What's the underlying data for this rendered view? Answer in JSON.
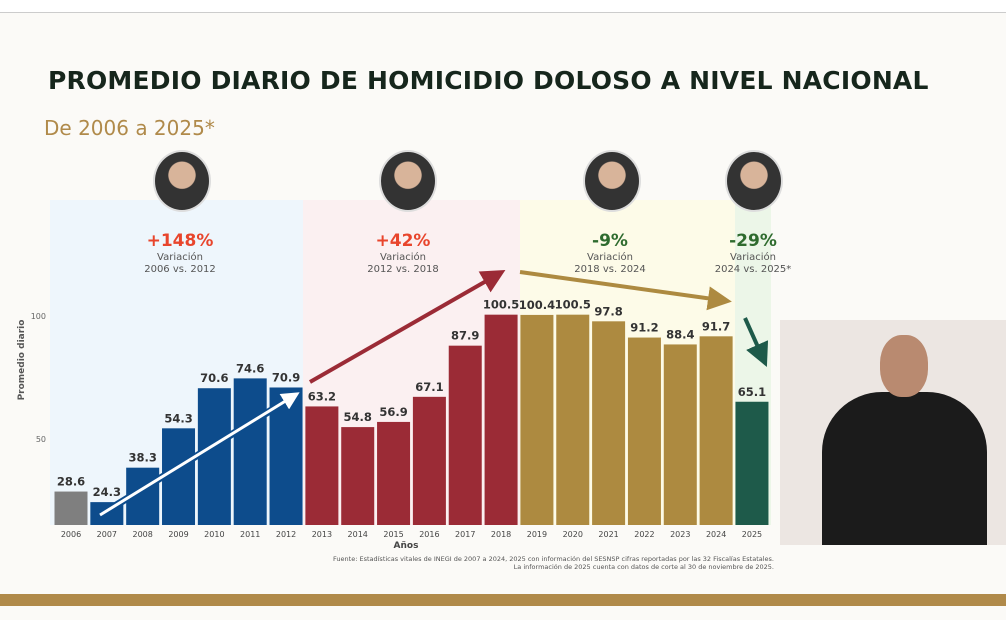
{
  "title": "PROMEDIO DIARIO DE HOMICIDIO DOLOSO A NIVEL NACIONAL",
  "subtitle": "De 2006 a 2025*",
  "periods": [
    {
      "pct": "+148%",
      "label": "Variación",
      "range": "2006 vs. 2012",
      "color": "#e8452c"
    },
    {
      "pct": "+42%",
      "label": "Variación",
      "range": "2012 vs. 2018",
      "color": "#e8452c"
    },
    {
      "pct": "-9%",
      "label": "Variación",
      "range": "2018 vs. 2024",
      "color": "#2e6b2e"
    },
    {
      "pct": "-29%",
      "label": "Variación",
      "range": "2024 vs. 2025*",
      "color": "#2e6b2e"
    }
  ],
  "footnote": {
    "line1": "Fuente: Estadísticas vitales de INEGI de 2007 a 2024, 2025 con información del SESNSP cifras reportadas por las 32 Fiscalías Estatales.",
    "line2": "La información de 2025 cuenta con datos de corte al 30 de noviembre de 2025."
  },
  "chart_data": {
    "type": "bar",
    "title": "PROMEDIO DIARIO DE HOMICIDIO DOLOSO A NIVEL NACIONAL",
    "subtitle": "De 2006 a 2025*",
    "xlabel": "Años",
    "ylabel": "Promedio diario",
    "yticks": [
      50,
      100
    ],
    "ylim": [
      15,
      147
    ],
    "grid": false,
    "categories": [
      "2006",
      "2007",
      "2008",
      "2009",
      "2010",
      "2011",
      "2012",
      "2013",
      "2014",
      "2015",
      "2016",
      "2017",
      "2018",
      "2019",
      "2020",
      "2021",
      "2022",
      "2023",
      "2024",
      "2025"
    ],
    "values": [
      28.6,
      24.3,
      38.3,
      54.3,
      70.6,
      74.6,
      70.9,
      63.2,
      54.8,
      56.9,
      67.1,
      87.9,
      100.5,
      100.4,
      100.5,
      97.8,
      91.2,
      88.4,
      91.7,
      65.1
    ],
    "bar_colors": [
      "#7f7f7f",
      "#0d4c8c",
      "#0d4c8c",
      "#0d4c8c",
      "#0d4c8c",
      "#0d4c8c",
      "#0d4c8c",
      "#9b2b36",
      "#9b2b36",
      "#9b2b36",
      "#9b2b36",
      "#9b2b36",
      "#9b2b36",
      "#ad8a40",
      "#ad8a40",
      "#ad8a40",
      "#ad8a40",
      "#ad8a40",
      "#ad8a40",
      "#1e5a4a"
    ],
    "band_colors": [
      "#eef6fc",
      "#fbf0f1",
      "#fdfbe8",
      "#ecf6e8"
    ]
  }
}
